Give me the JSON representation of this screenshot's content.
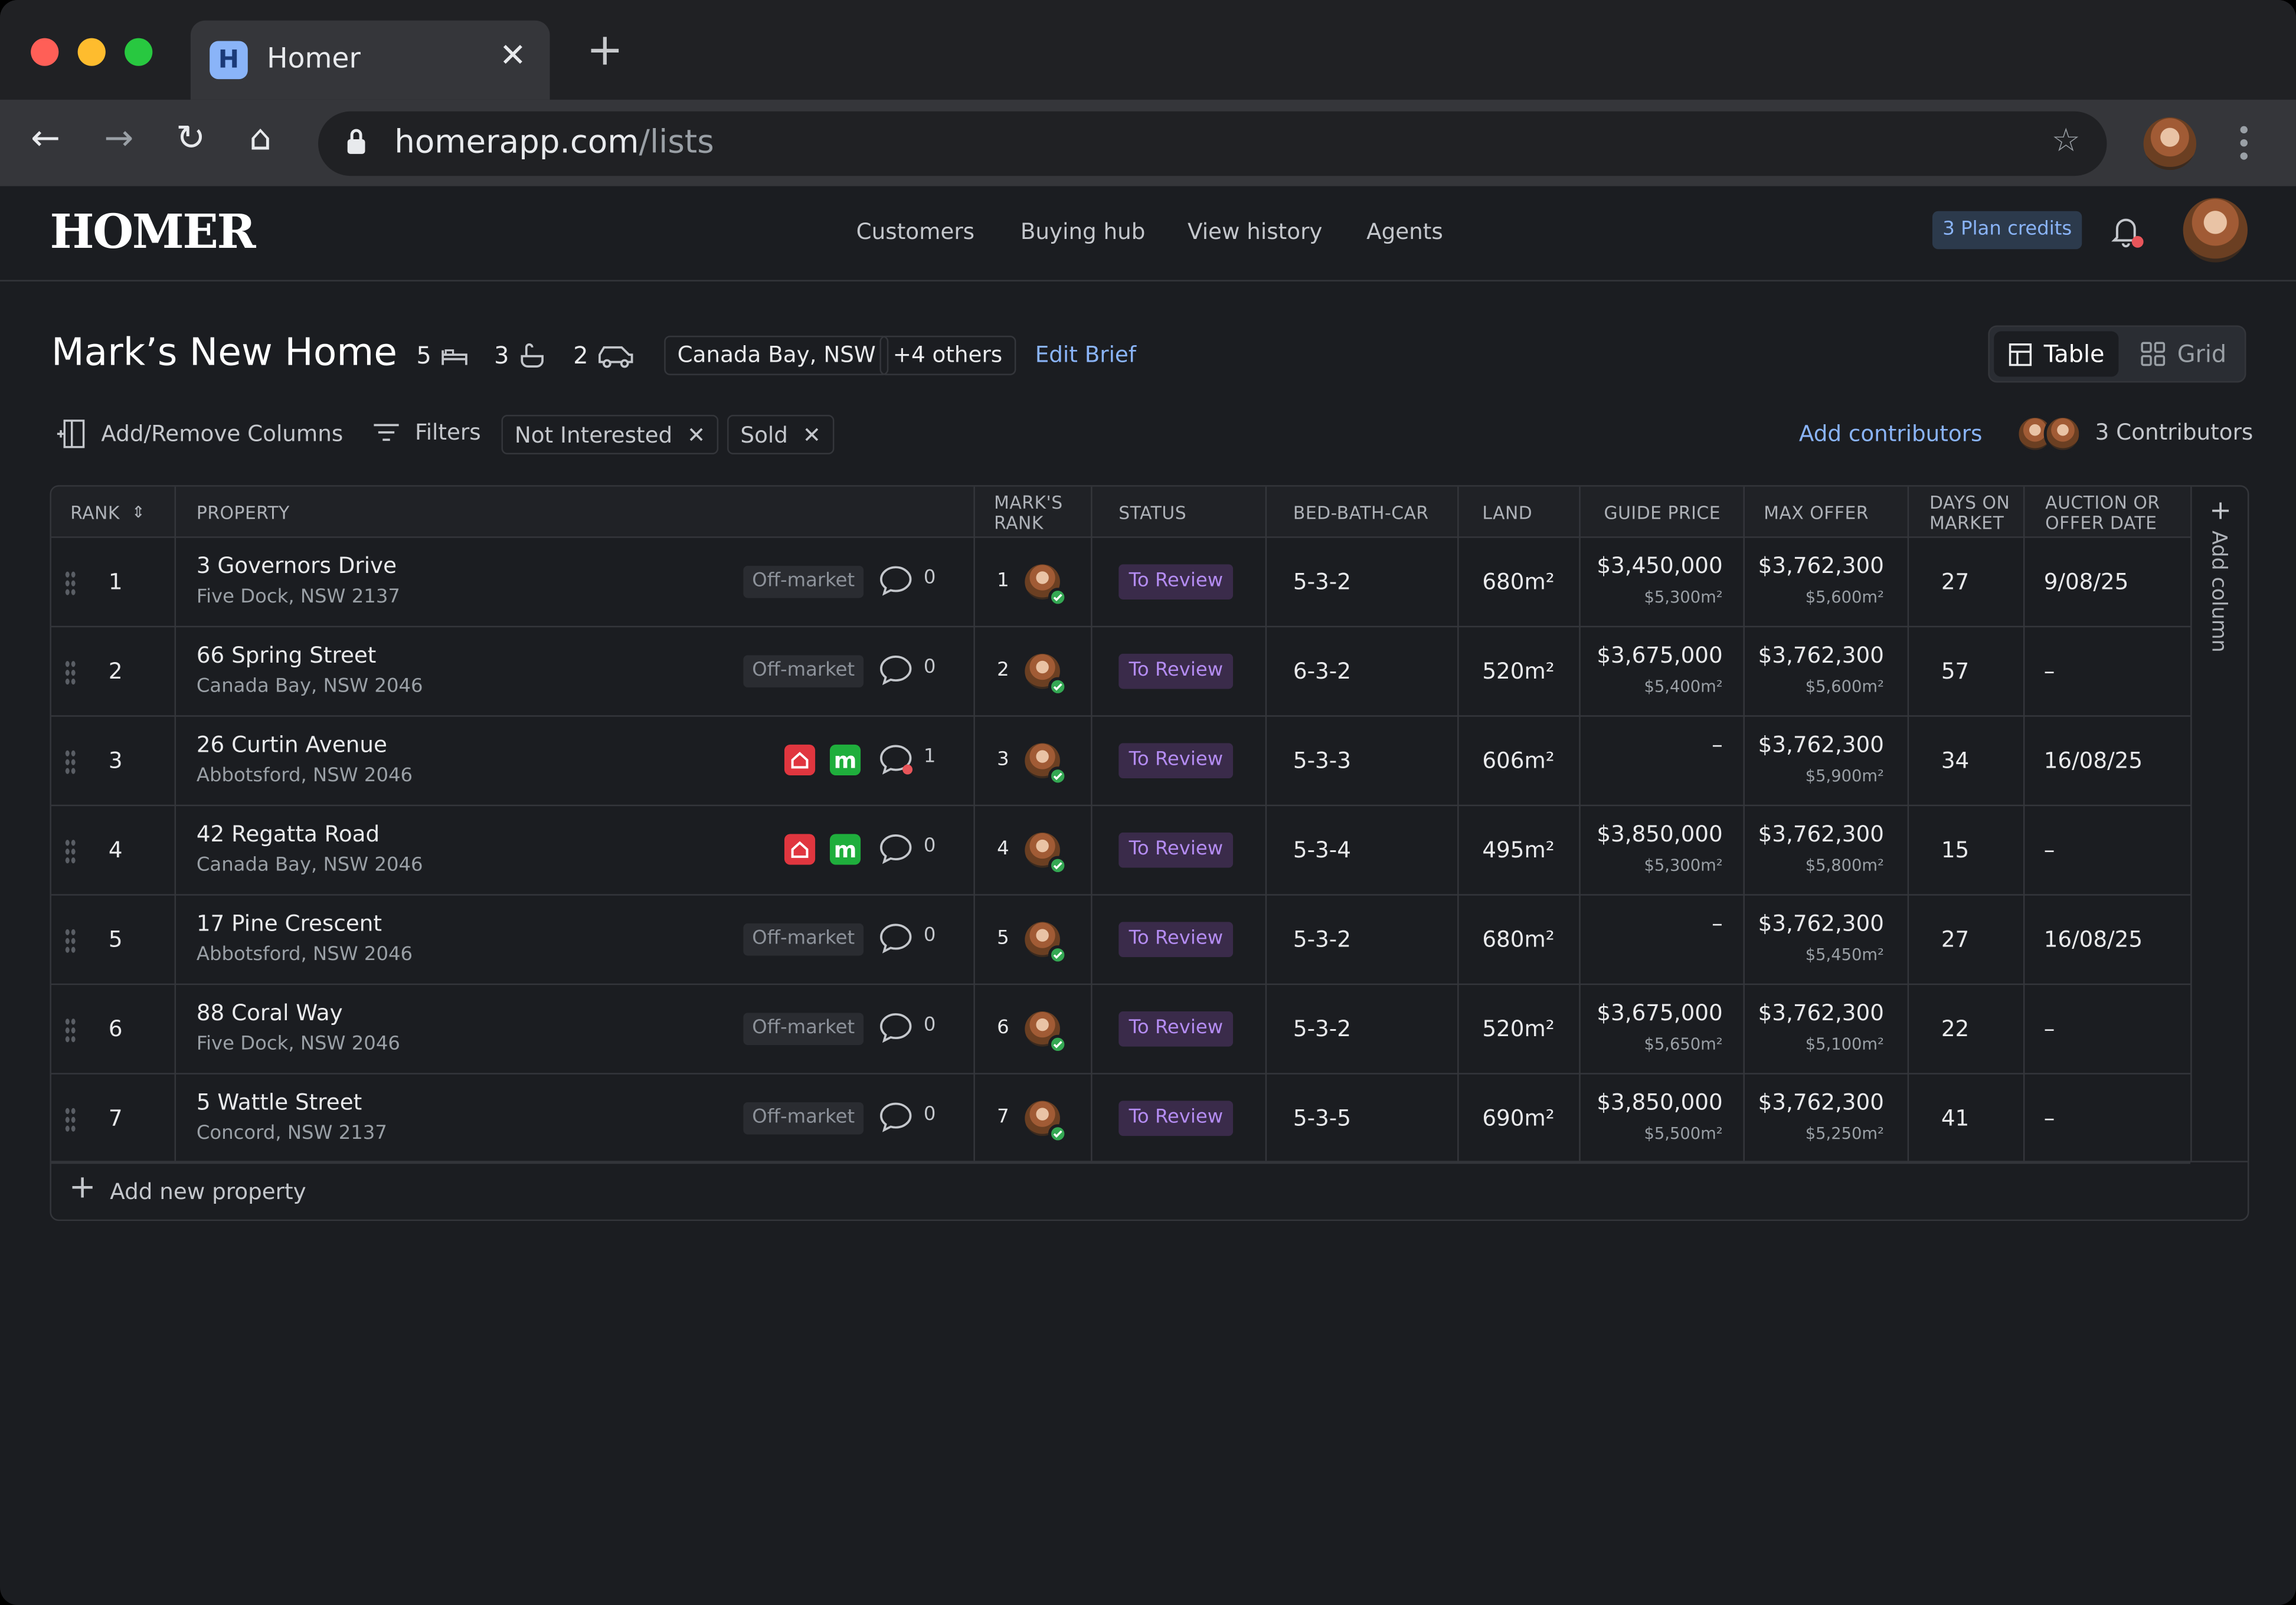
{
  "browser": {
    "tab_title": "Homer",
    "tab_favicon": "H",
    "url_host": "homerapp.com",
    "url_path": "/lists"
  },
  "app": {
    "logo": "HOMER",
    "nav": [
      "Customers",
      "Buying hub",
      "View history",
      "Agents"
    ],
    "plan_credits": "3 Plan credits"
  },
  "brief": {
    "title": "Mark’s New Home",
    "beds": "5",
    "baths": "3",
    "cars": "2",
    "location": "Canada Bay, NSW",
    "others": "+4 others",
    "edit": "Edit Brief"
  },
  "view_toggle": {
    "table": "Table",
    "grid": "Grid"
  },
  "filters": {
    "add_remove": "Add/Remove Columns",
    "filters": "Filters",
    "chips": [
      "Not Interested",
      "Sold"
    ],
    "add_contributors": "Add contributors",
    "contributors": "3 Contributors"
  },
  "columns": {
    "rank": "RANK",
    "property": "PROPERTY",
    "marks_rank_1": "MARK'S",
    "marks_rank_2": "RANK",
    "status": "STATUS",
    "bbc": "BED-BATH-CAR",
    "land": "LAND",
    "guide": "GUIDE PRICE",
    "max": "MAX OFFER",
    "days_1": "DAYS ON",
    "days_2": "MARKET",
    "auction_1": "AUCTION OR",
    "auction_2": "OFFER DATE",
    "add_column": "Add column"
  },
  "rows": [
    {
      "rank": "1",
      "name": "3 Governors Drive",
      "suburb": "Five Dock, NSW 2137",
      "tag": "Off-market",
      "comments": "0",
      "unread": false,
      "mrank": "1",
      "status": "To Review",
      "bbc": "5-3-2",
      "land": "680m²",
      "guide": "$3,450,000",
      "guide_sub": "$5,300m²",
      "max": "$3,762,300",
      "max_sub": "$5,600m²",
      "days": "27",
      "auction": "9/08/25"
    },
    {
      "rank": "2",
      "name": "66 Spring Street",
      "suburb": "Canada Bay, NSW 2046",
      "tag": "Off-market",
      "comments": "0",
      "unread": false,
      "mrank": "2",
      "status": "To Review",
      "bbc": "6-3-2",
      "land": "520m²",
      "guide": "$3,675,000",
      "guide_sub": "$5,400m²",
      "max": "$3,762,300",
      "max_sub": "$5,600m²",
      "days": "57",
      "auction": "–"
    },
    {
      "rank": "3",
      "name": "26 Curtin Avenue",
      "suburb": "Abbotsford, NSW 2046",
      "tag": "",
      "comments": "1",
      "unread": true,
      "mrank": "3",
      "status": "To Review",
      "bbc": "5-3-3",
      "land": "606m²",
      "guide": "–",
      "guide_sub": "",
      "max": "$3,762,300",
      "max_sub": "$5,900m²",
      "days": "34",
      "auction": "16/08/25"
    },
    {
      "rank": "4",
      "name": "42 Regatta Road",
      "suburb": "Canada Bay, NSW 2046",
      "tag": "",
      "comments": "0",
      "unread": false,
      "mrank": "4",
      "status": "To Review",
      "bbc": "5-3-4",
      "land": "495m²",
      "guide": "$3,850,000",
      "guide_sub": "$5,300m²",
      "max": "$3,762,300",
      "max_sub": "$5,800m²",
      "days": "15",
      "auction": "–"
    },
    {
      "rank": "5",
      "name": "17 Pine Crescent",
      "suburb": "Abbotsford, NSW 2046",
      "tag": "Off-market",
      "comments": "0",
      "unread": false,
      "mrank": "5",
      "status": "To Review",
      "bbc": "5-3-2",
      "land": "680m²",
      "guide": "–",
      "guide_sub": "",
      "max": "$3,762,300",
      "max_sub": "$5,450m²",
      "days": "27",
      "auction": "16/08/25"
    },
    {
      "rank": "6",
      "name": "88 Coral Way",
      "suburb": "Five Dock, NSW 2046",
      "tag": "Off-market",
      "comments": "0",
      "unread": false,
      "mrank": "6",
      "status": "To Review",
      "bbc": "5-3-2",
      "land": "520m²",
      "guide": "$3,675,000",
      "guide_sub": "$5,650m²",
      "max": "$3,762,300",
      "max_sub": "$5,100m²",
      "days": "22",
      "auction": "–"
    },
    {
      "rank": "7",
      "name": "5 Wattle Street",
      "suburb": "Concord, NSW 2137",
      "tag": "Off-market",
      "comments": "0",
      "unread": false,
      "mrank": "7",
      "status": "To Review",
      "bbc": "5-3-5",
      "land": "690m²",
      "guide": "$3,850,000",
      "guide_sub": "$5,500m²",
      "max": "$3,762,300",
      "max_sub": "$5,250m²",
      "days": "41",
      "auction": "–"
    }
  ],
  "add_property": "Add new property",
  "badge_m": "m"
}
